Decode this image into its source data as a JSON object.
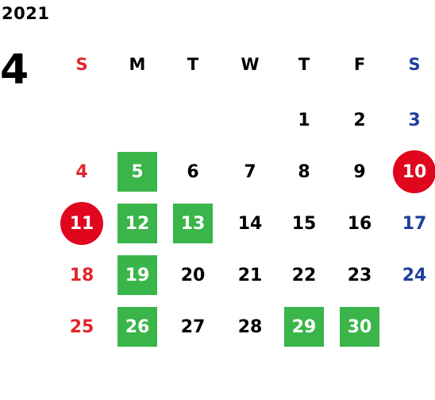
{
  "year": "2021",
  "month": "4",
  "weekdays": [
    "S",
    "M",
    "T",
    "W",
    "T",
    "F",
    "S"
  ],
  "weeks": [
    [
      "",
      "",
      "",
      "",
      "1",
      "2",
      "3"
    ],
    [
      "4",
      "5",
      "6",
      "7",
      "8",
      "9",
      "10"
    ],
    [
      "11",
      "12",
      "13",
      "14",
      "15",
      "16",
      "17"
    ],
    [
      "18",
      "19",
      "20",
      "21",
      "22",
      "23",
      "24"
    ],
    [
      "25",
      "26",
      "27",
      "28",
      "29",
      "30",
      ""
    ]
  ],
  "highlighted_green": [
    "5",
    "12",
    "13",
    "19",
    "26",
    "29",
    "30"
  ],
  "highlighted_red": [
    "10",
    "11"
  ],
  "colors": {
    "sunday": "#e0262b",
    "saturday": "#1e3f9c",
    "green_marker": "#3ab54a",
    "red_marker": "#e0061e"
  }
}
